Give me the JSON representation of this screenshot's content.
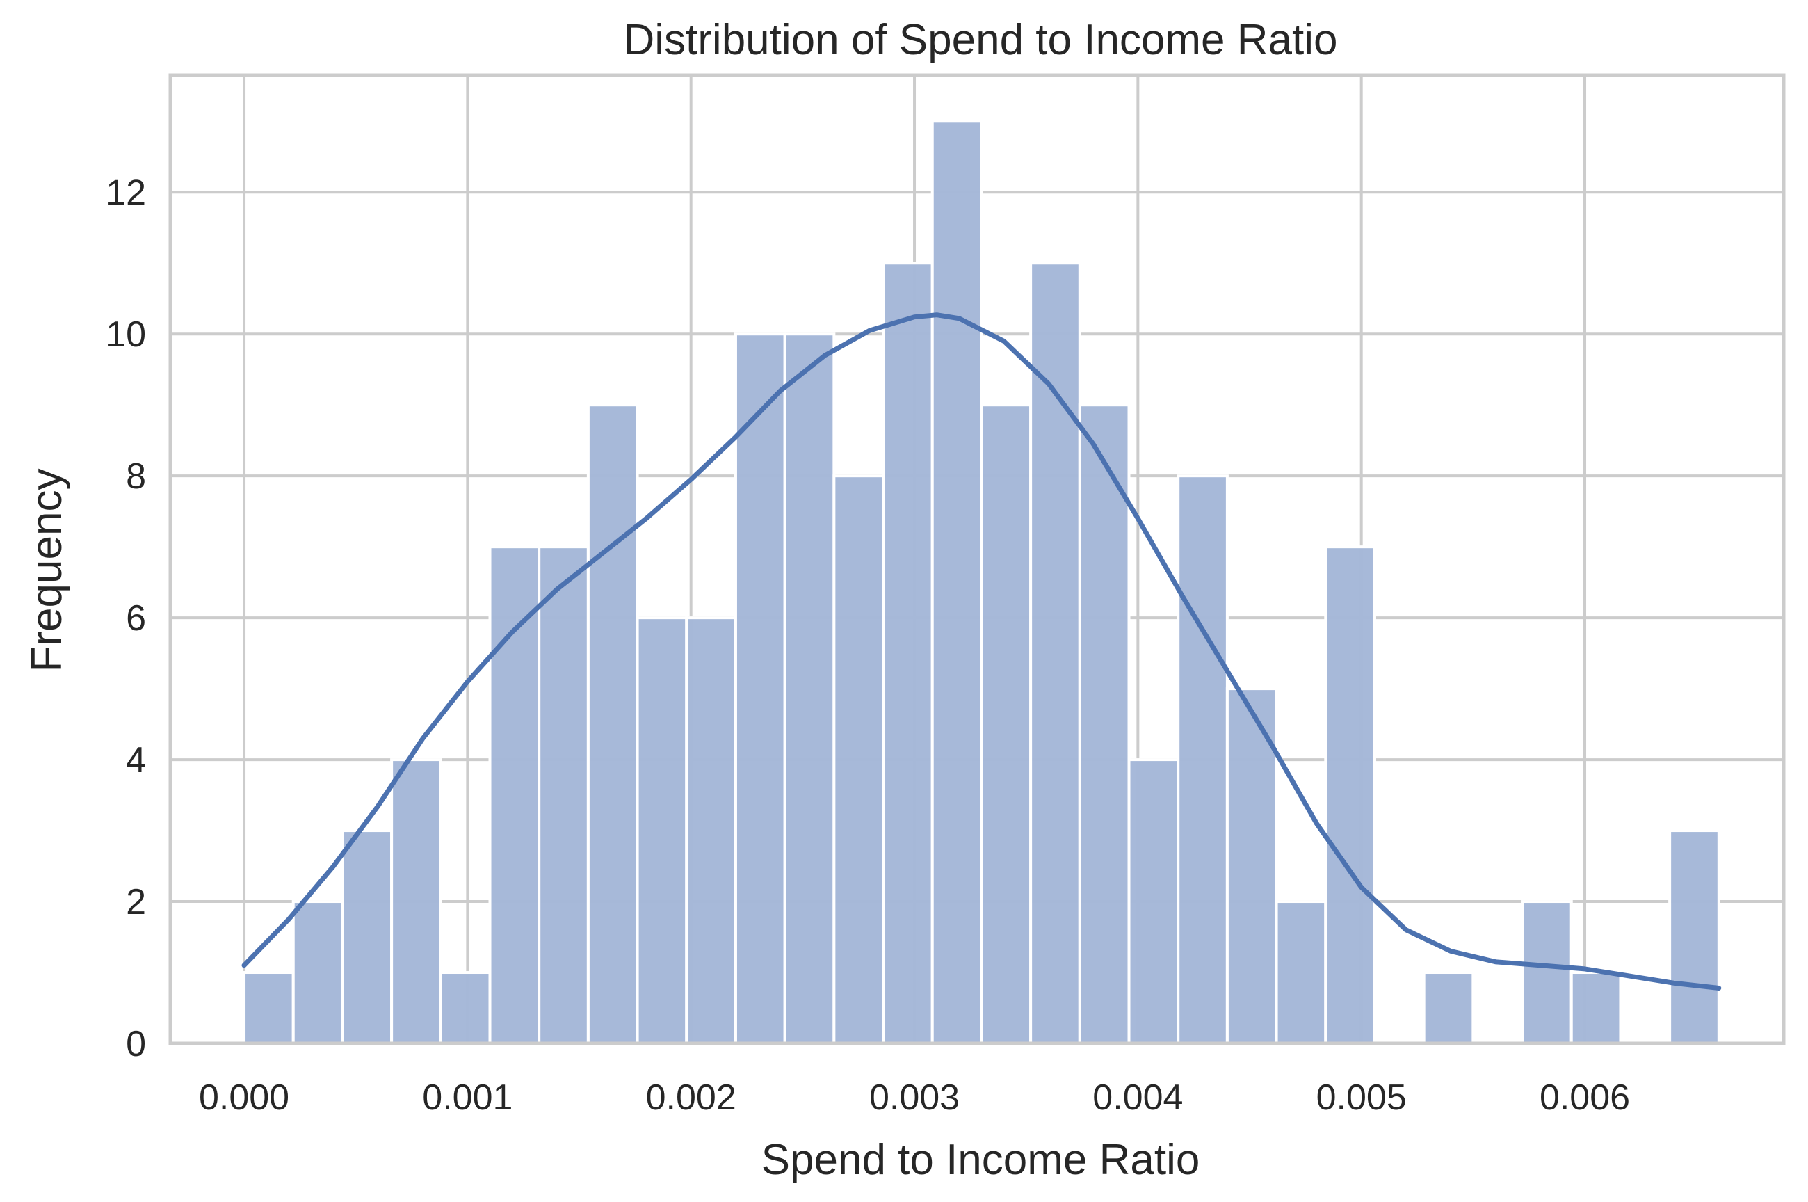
{
  "chart_data": {
    "type": "bar",
    "title": "Distribution of Spend to Income Ratio",
    "xlabel": "Spend to Income Ratio",
    "ylabel": "Frequency",
    "xlim": [
      -0.00033,
      0.00689
    ],
    "ylim": [
      0,
      13.65
    ],
    "xticks": [
      0.0,
      0.001,
      0.002,
      0.003,
      0.004,
      0.005,
      0.006
    ],
    "xtick_labels": [
      "0.000",
      "0.001",
      "0.002",
      "0.003",
      "0.004",
      "0.005",
      "0.006"
    ],
    "yticks": [
      0,
      2,
      4,
      6,
      8,
      10,
      12
    ],
    "ytick_labels": [
      "0",
      "2",
      "4",
      "6",
      "8",
      "10",
      "12"
    ],
    "grid": true,
    "bin_edges": [
      0.0,
      0.00022,
      0.00044,
      0.00066,
      0.00088,
      0.0011,
      0.00132,
      0.00154,
      0.00176,
      0.00198,
      0.0022,
      0.00242,
      0.00264,
      0.00286,
      0.00308,
      0.0033,
      0.00352,
      0.00374,
      0.00396,
      0.00418,
      0.0044,
      0.00462,
      0.00484,
      0.00506,
      0.00528,
      0.0055,
      0.00572,
      0.00594,
      0.00616,
      0.00638,
      0.0066
    ],
    "counts": [
      1,
      2,
      3,
      4,
      1,
      7,
      7,
      9,
      6,
      6,
      10,
      10,
      8,
      11,
      13,
      9,
      11,
      9,
      4,
      8,
      5,
      2,
      7,
      0,
      1,
      0,
      2,
      1,
      0,
      3
    ],
    "kde": {
      "x": [
        0.0,
        0.0002,
        0.0004,
        0.0006,
        0.0008,
        0.001,
        0.0012,
        0.0014,
        0.0016,
        0.0018,
        0.002,
        0.0022,
        0.0024,
        0.0026,
        0.0028,
        0.003,
        0.0031,
        0.0032,
        0.0034,
        0.0036,
        0.0038,
        0.004,
        0.0042,
        0.0044,
        0.0046,
        0.0048,
        0.005,
        0.0052,
        0.0054,
        0.0056,
        0.0058,
        0.006,
        0.0062,
        0.0064,
        0.0066
      ],
      "y": [
        1.1,
        1.75,
        2.5,
        3.35,
        4.3,
        5.1,
        5.8,
        6.4,
        6.9,
        7.4,
        7.95,
        8.55,
        9.2,
        9.7,
        10.05,
        10.24,
        10.27,
        10.22,
        9.9,
        9.3,
        8.45,
        7.4,
        6.3,
        5.25,
        4.2,
        3.1,
        2.2,
        1.6,
        1.3,
        1.15,
        1.1,
        1.05,
        0.95,
        0.85,
        0.78
      ]
    },
    "colors": {
      "bar_fill": "#a4b7d8",
      "bar_edge": "#ffffff",
      "kde_line": "#4c72b0",
      "grid": "#cccccc",
      "spine": "#cccccc",
      "text": "#262626"
    }
  }
}
